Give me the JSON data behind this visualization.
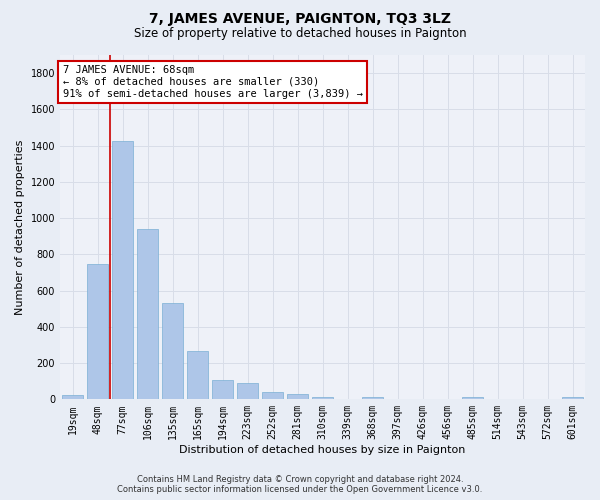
{
  "title": "7, JAMES AVENUE, PAIGNTON, TQ3 3LZ",
  "subtitle": "Size of property relative to detached houses in Paignton",
  "xlabel": "Distribution of detached houses by size in Paignton",
  "ylabel": "Number of detached properties",
  "footer_line1": "Contains HM Land Registry data © Crown copyright and database right 2024.",
  "footer_line2": "Contains public sector information licensed under the Open Government Licence v3.0.",
  "categories": [
    "19sqm",
    "48sqm",
    "77sqm",
    "106sqm",
    "135sqm",
    "165sqm",
    "194sqm",
    "223sqm",
    "252sqm",
    "281sqm",
    "310sqm",
    "339sqm",
    "368sqm",
    "397sqm",
    "426sqm",
    "456sqm",
    "485sqm",
    "514sqm",
    "543sqm",
    "572sqm",
    "601sqm"
  ],
  "values": [
    22,
    745,
    1425,
    940,
    530,
    265,
    105,
    90,
    38,
    27,
    15,
    0,
    15,
    0,
    0,
    0,
    12,
    0,
    0,
    0,
    12
  ],
  "bar_color": "#aec6e8",
  "bar_edge_color": "#7aafd4",
  "red_line_index": 2,
  "annotation_text_line1": "7 JAMES AVENUE: 68sqm",
  "annotation_text_line2": "← 8% of detached houses are smaller (330)",
  "annotation_text_line3": "91% of semi-detached houses are larger (3,839) →",
  "annotation_box_color": "#ffffff",
  "annotation_border_color": "#cc0000",
  "ylim": [
    0,
    1900
  ],
  "yticks": [
    0,
    200,
    400,
    600,
    800,
    1000,
    1200,
    1400,
    1600,
    1800
  ],
  "bg_color": "#e8edf5",
  "plot_bg_color": "#eef1f8",
  "grid_color": "#d8dde8",
  "title_fontsize": 10,
  "subtitle_fontsize": 8.5,
  "axis_label_fontsize": 8,
  "tick_fontsize": 7,
  "annotation_fontsize": 7.5,
  "footer_fontsize": 6
}
